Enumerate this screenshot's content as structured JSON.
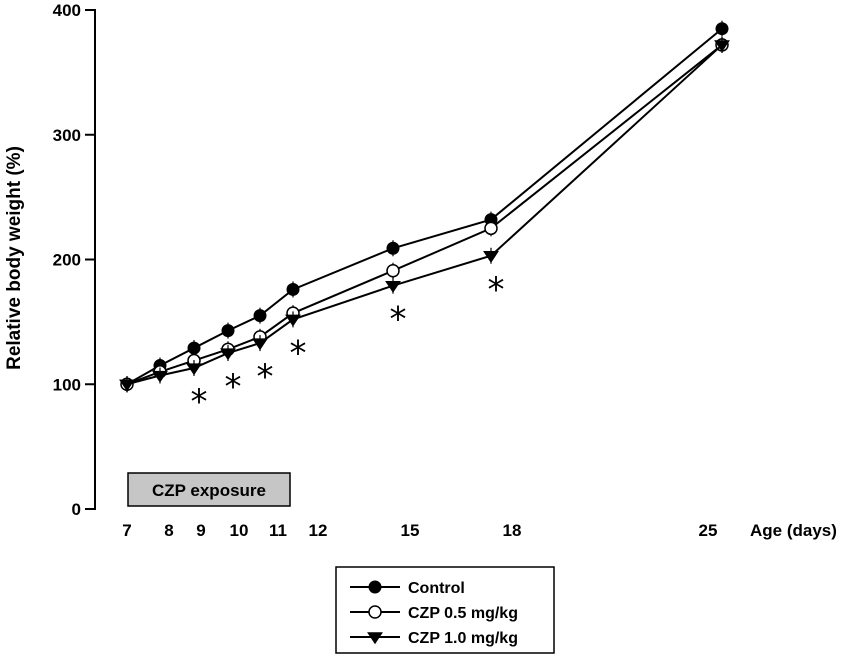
{
  "chart_data": {
    "type": "line",
    "title": "",
    "ylabel": "Relative body weight (%)",
    "xlabel": "Age (days)",
    "ylim": [
      0,
      400
    ],
    "yticks": [
      0,
      100,
      200,
      300,
      400
    ],
    "xticks": [
      7,
      8,
      9,
      10,
      11,
      12,
      15,
      18,
      25
    ],
    "exposure_label": "CZP exposure",
    "exposure_range": [
      7,
      11
    ],
    "significance_marker": "*",
    "series": [
      {
        "name": "Control",
        "marker": "filled-circle",
        "points": [
          {
            "x": 7,
            "y": 100
          },
          {
            "x": 8,
            "y": 115
          },
          {
            "x": 9,
            "y": 129
          },
          {
            "x": 10,
            "y": 143
          },
          {
            "x": 11,
            "y": 155
          },
          {
            "x": 12,
            "y": 176
          },
          {
            "x": 15,
            "y": 209
          },
          {
            "x": 18,
            "y": 232
          },
          {
            "x": 25,
            "y": 385
          }
        ]
      },
      {
        "name": "CZP 0.5 mg/kg",
        "marker": "open-circle",
        "points": [
          {
            "x": 7,
            "y": 100
          },
          {
            "x": 8,
            "y": 110
          },
          {
            "x": 9,
            "y": 119
          },
          {
            "x": 10,
            "y": 128
          },
          {
            "x": 11,
            "y": 138
          },
          {
            "x": 12,
            "y": 157
          },
          {
            "x": 15,
            "y": 191
          },
          {
            "x": 18,
            "y": 225
          },
          {
            "x": 25,
            "y": 372
          }
        ]
      },
      {
        "name": "CZP 1.0 mg/kg",
        "marker": "filled-triangle-down",
        "points": [
          {
            "x": 7,
            "y": 100
          },
          {
            "x": 8,
            "y": 107
          },
          {
            "x": 9,
            "y": 113
          },
          {
            "x": 10,
            "y": 125
          },
          {
            "x": 11,
            "y": 133
          },
          {
            "x": 12,
            "y": 152
          },
          {
            "x": 15,
            "y": 179
          },
          {
            "x": 18,
            "y": 203
          },
          {
            "x": 25,
            "y": 372
          }
        ]
      }
    ],
    "significance_days": [
      9,
      10,
      11,
      12,
      15,
      18
    ],
    "legend_position": "bottom-center"
  }
}
